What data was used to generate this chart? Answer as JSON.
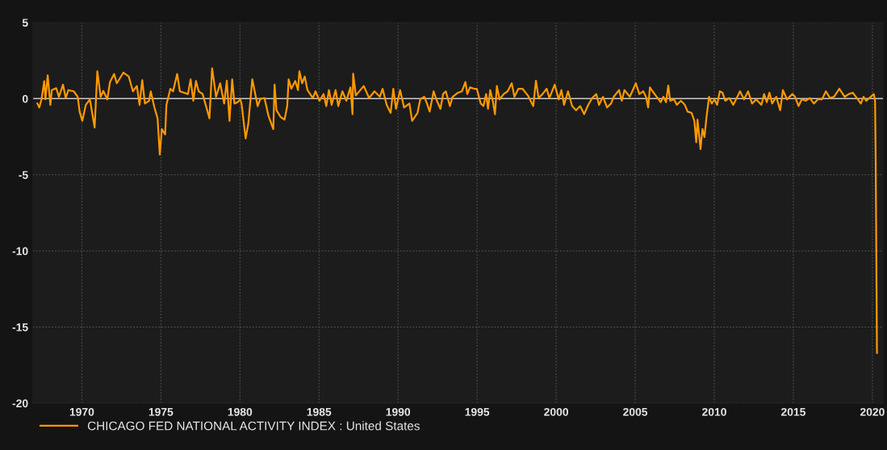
{
  "chart_data": {
    "type": "line",
    "x": [
      1967.19,
      1967.31,
      1967.45,
      1967.62,
      1967.7,
      1967.84,
      1968.01,
      1968.1,
      1968.38,
      1968.55,
      1968.81,
      1968.98,
      1969.15,
      1969.49,
      1969.74,
      1969.86,
      1970.03,
      1970.25,
      1970.51,
      1970.81,
      1970.98,
      1971.19,
      1971.36,
      1971.61,
      1971.78,
      1972.04,
      1972.21,
      1972.63,
      1972.97,
      1973.23,
      1973.48,
      1973.65,
      1973.82,
      1973.99,
      1974.25,
      1974.36,
      1974.59,
      1974.79,
      1974.93,
      1975.06,
      1975.27,
      1975.35,
      1975.6,
      1975.77,
      1976.03,
      1976.2,
      1976.71,
      1976.88,
      1977.05,
      1977.22,
      1977.39,
      1977.64,
      1978.07,
      1978.24,
      1978.49,
      1978.75,
      1979.0,
      1979.17,
      1979.34,
      1979.51,
      1979.65,
      1979.85,
      1980.02,
      1980.1,
      1980.36,
      1980.53,
      1980.78,
      1981.12,
      1981.29,
      1981.55,
      1981.8,
      1982.11,
      1982.19,
      1982.31,
      1982.57,
      1982.82,
      1982.99,
      1983.08,
      1983.25,
      1983.5,
      1983.67,
      1983.76,
      1983.93,
      1984.1,
      1984.27,
      1984.61,
      1984.78,
      1985.03,
      1985.29,
      1985.46,
      1985.63,
      1985.8,
      1986.05,
      1986.22,
      1986.48,
      1986.73,
      1986.99,
      1987.12,
      1987.16,
      1987.33,
      1987.83,
      1988.17,
      1988.51,
      1988.85,
      1989.02,
      1989.28,
      1989.53,
      1989.7,
      1989.87,
      1990.13,
      1990.38,
      1990.72,
      1990.89,
      1991.23,
      1991.4,
      1991.66,
      1991.83,
      1992.0,
      1992.25,
      1992.42,
      1992.68,
      1992.85,
      1993.02,
      1993.28,
      1993.45,
      1993.79,
      1994.04,
      1994.26,
      1994.38,
      1994.55,
      1994.81,
      1994.98,
      1995.23,
      1995.4,
      1995.57,
      1995.69,
      1995.83,
      1995.99,
      1996.13,
      1996.25,
      1996.42,
      1996.68,
      1996.93,
      1997.19,
      1997.36,
      1997.61,
      1997.87,
      1998.21,
      1998.55,
      1998.72,
      1998.89,
      1999.14,
      1999.4,
      1999.57,
      1999.91,
      2000.16,
      2000.33,
      2000.5,
      2000.75,
      2001.01,
      2001.26,
      2001.52,
      2001.77,
      2002.03,
      2002.28,
      2002.54,
      2002.71,
      2002.96,
      2003.22,
      2003.47,
      2003.64,
      2003.98,
      2004.15,
      2004.32,
      2004.66,
      2005.04,
      2005.26,
      2005.51,
      2005.68,
      2005.82,
      2005.93,
      2006.1,
      2006.36,
      2006.61,
      2006.78,
      2006.95,
      2007.09,
      2007.21,
      2007.46,
      2007.63,
      2007.89,
      2008.14,
      2008.31,
      2008.57,
      2008.74,
      2008.86,
      2008.94,
      2009.13,
      2009.25,
      2009.38,
      2009.5,
      2009.67,
      2009.84,
      2010.01,
      2010.18,
      2010.35,
      2010.52,
      2010.69,
      2010.95,
      2011.2,
      2011.46,
      2011.63,
      2011.88,
      2012.14,
      2012.39,
      2012.65,
      2012.98,
      2013.15,
      2013.32,
      2013.49,
      2013.66,
      2013.92,
      2014.17,
      2014.34,
      2014.6,
      2014.94,
      2015.11,
      2015.33,
      2015.53,
      2015.79,
      2016.04,
      2016.3,
      2016.55,
      2016.81,
      2017.06,
      2017.32,
      2017.57,
      2017.91,
      2018.25,
      2018.51,
      2018.76,
      2019.02,
      2019.27,
      2019.44,
      2019.61,
      2019.81,
      2020.09,
      2020.17,
      2020.21,
      2020.29
    ],
    "series": [
      {
        "name": "CHICAGO FED NATIONAL ACTIVITY INDEX : United States",
        "color": "#ff9900",
        "values": [
          -0.32,
          -0.58,
          -0.05,
          1.15,
          -0.05,
          1.53,
          -0.41,
          0.56,
          0.69,
          0.12,
          0.92,
          0.04,
          0.56,
          0.48,
          0.12,
          -0.85,
          -1.46,
          -0.41,
          -0.05,
          -1.9,
          1.8,
          0.12,
          0.51,
          -0.05,
          1.09,
          1.62,
          1.01,
          1.71,
          1.45,
          0.48,
          0.83,
          -0.41,
          1.22,
          -0.32,
          -0.14,
          0.48,
          -0.58,
          -1.29,
          -3.67,
          -2.0,
          -2.35,
          -0.41,
          0.65,
          0.48,
          1.62,
          0.48,
          0.3,
          1.27,
          -0.14,
          1.16,
          0.48,
          0.3,
          -1.29,
          2.0,
          0.12,
          1.01,
          -0.32,
          1.18,
          -1.46,
          1.27,
          -0.32,
          -0.23,
          -0.05,
          -0.32,
          -2.61,
          -1.64,
          1.27,
          -0.49,
          -0.02,
          0.04,
          -1.11,
          -2.0,
          0.92,
          -0.76,
          -1.2,
          -1.38,
          -0.49,
          1.27,
          0.65,
          1.16,
          0.56,
          1.8,
          1.01,
          1.45,
          0.56,
          0.04,
          0.48,
          -0.14,
          0.3,
          -0.49,
          0.56,
          -0.41,
          0.56,
          -0.49,
          0.48,
          -0.14,
          0.74,
          -1.02,
          1.64,
          0.21,
          0.83,
          0.04,
          0.48,
          0.12,
          0.65,
          -0.41,
          -0.94,
          0.65,
          -0.67,
          0.56,
          -0.58,
          -0.32,
          -1.46,
          -0.94,
          -0.05,
          0.12,
          -0.32,
          -0.85,
          0.48,
          -0.05,
          -0.67,
          0.3,
          0.48,
          -0.49,
          0.12,
          0.39,
          0.48,
          1.09,
          0.3,
          0.74,
          0.65,
          0.65,
          -0.32,
          -0.49,
          0.3,
          -0.67,
          0.56,
          -0.14,
          -1.02,
          0.83,
          -0.05,
          0.3,
          0.48,
          1.01,
          0.12,
          0.65,
          0.65,
          0.21,
          -0.49,
          1.18,
          0.04,
          0.3,
          0.65,
          0.04,
          0.92,
          -0.05,
          0.56,
          -0.41,
          0.48,
          -0.49,
          -0.76,
          -0.49,
          -1.02,
          -0.41,
          0.04,
          0.3,
          -0.41,
          0.12,
          -0.58,
          -0.32,
          0.12,
          0.56,
          -0.14,
          0.56,
          0.12,
          1.01,
          0.3,
          0.48,
          0.12,
          -0.58,
          0.74,
          0.48,
          0.12,
          -0.23,
          0.12,
          -0.23,
          0.86,
          -0.14,
          -0.05,
          -0.41,
          -0.14,
          -0.41,
          -0.85,
          -0.94,
          -1.46,
          -2.87,
          -1.38,
          -3.32,
          -2.0,
          -2.52,
          -1.29,
          0.12,
          -0.32,
          -0.05,
          -0.41,
          0.48,
          0.39,
          -0.14,
          0.04,
          -0.41,
          0.12,
          0.48,
          -0.05,
          0.48,
          -0.32,
          -0.05,
          -0.41,
          0.3,
          -0.23,
          0.39,
          -0.32,
          0.12,
          -0.76,
          0.56,
          -0.05,
          0.3,
          0.12,
          -0.49,
          -0.05,
          -0.14,
          0.04,
          -0.32,
          -0.05,
          -0.05,
          0.48,
          0.04,
          0.12,
          0.65,
          0.12,
          0.3,
          0.39,
          0.04,
          -0.32,
          0.12,
          -0.14,
          0.04,
          0.3,
          -0.14,
          -4.19,
          -16.7
        ]
      }
    ],
    "xlim": [
      1966.9,
      2020.7
    ],
    "xticks": [
      1970,
      1975,
      1980,
      1985,
      1990,
      1995,
      2000,
      2005,
      2010,
      2015,
      2020
    ],
    "ylim": [
      -20,
      5
    ],
    "yticks": [
      -20,
      -15,
      -10,
      -5,
      0,
      5
    ],
    "ref_lines": [
      {
        "axis": "y",
        "value": 0,
        "color": "#c8c8c8"
      }
    ],
    "grid": true,
    "legend": "bottom left"
  }
}
